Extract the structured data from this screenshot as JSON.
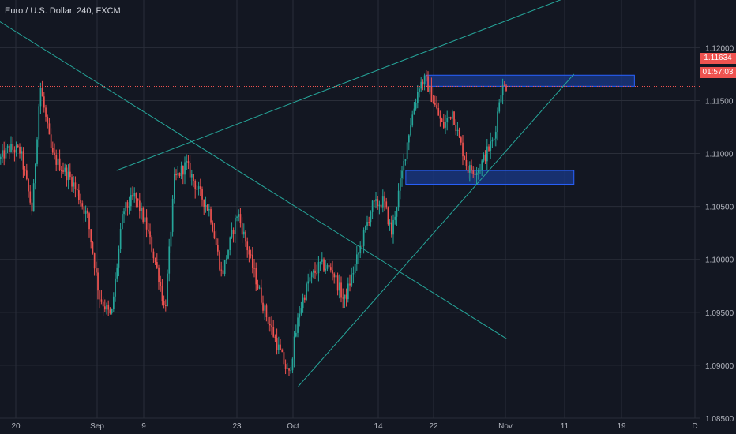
{
  "header": {
    "title": "Euro / U.S. Dollar, 240, FXCM"
  },
  "price_tag": {
    "value": "1.11634",
    "timer": "01:57:03"
  },
  "colors": {
    "background": "#131722",
    "grid": "#2a2e39",
    "up": "#26a69a",
    "down": "#ef5350",
    "trendline": "#26a69a",
    "zone_fill": "#1a3a8a",
    "zone_border": "#2962ff",
    "price_line": "#ef5350"
  },
  "chart_data": {
    "type": "candlestick",
    "title": "Euro / U.S. Dollar, 240, FXCM",
    "ylim": [
      1.085,
      1.1245
    ],
    "y_ticks": [
      "1.12000",
      "1.11500",
      "1.11000",
      "1.10500",
      "1.10000",
      "1.09500",
      "1.09000",
      "1.08500"
    ],
    "y_tick_values": [
      1.12,
      1.115,
      1.11,
      1.105,
      1.1,
      1.095,
      1.09,
      1.085
    ],
    "x_ticks": [
      "20",
      "Sep",
      "9",
      "23",
      "Oct",
      "14",
      "22",
      "Nov",
      "11",
      "19",
      "D"
    ],
    "x_tick_dates": [
      "2019-08-20",
      "2019-09-01",
      "2019-09-09",
      "2019-09-23",
      "2019-10-01",
      "2019-10-14",
      "2019-10-22",
      "2019-11-01",
      "2019-11-11",
      "2019-11-19",
      "2019-11-29"
    ],
    "last_price": 1.11634,
    "grid": true,
    "keyframes": [
      [
        0,
        1.1095
      ],
      [
        10,
        1.1105
      ],
      [
        25,
        1.1102
      ],
      [
        40,
        1.1045
      ],
      [
        50,
        1.1165
      ],
      [
        65,
        1.1098
      ],
      [
        90,
        1.1075
      ],
      [
        110,
        1.104
      ],
      [
        125,
        1.0965
      ],
      [
        140,
        1.0945
      ],
      [
        155,
        1.1045
      ],
      [
        170,
        1.106
      ],
      [
        185,
        1.103
      ],
      [
        200,
        1.0985
      ],
      [
        208,
        1.095
      ],
      [
        220,
        1.1075
      ],
      [
        235,
        1.109
      ],
      [
        250,
        1.1065
      ],
      [
        265,
        1.1045
      ],
      [
        280,
        1.0985
      ],
      [
        300,
        1.1045
      ],
      [
        320,
        1.099
      ],
      [
        335,
        1.095
      ],
      [
        350,
        1.092
      ],
      [
        365,
        1.089
      ],
      [
        378,
        1.095
      ],
      [
        390,
        1.098
      ],
      [
        405,
        1.0995
      ],
      [
        420,
        1.099
      ],
      [
        435,
        1.096
      ],
      [
        455,
        1.101
      ],
      [
        470,
        1.105
      ],
      [
        485,
        1.1055
      ],
      [
        495,
        1.1025
      ],
      [
        508,
        1.108
      ],
      [
        518,
        1.1125
      ],
      [
        530,
        1.1165
      ],
      [
        538,
        1.117
      ],
      [
        550,
        1.1145
      ],
      [
        560,
        1.1125
      ],
      [
        572,
        1.114
      ],
      [
        580,
        1.1115
      ],
      [
        592,
        1.1085
      ],
      [
        605,
        1.1085
      ],
      [
        615,
        1.11
      ],
      [
        625,
        1.1115
      ],
      [
        633,
        1.116
      ],
      [
        642,
        1.1165
      ]
    ],
    "trendlines": [
      {
        "from": [
          "2019-08-15",
          1.1235
        ],
        "to": [
          "2019-11-01",
          1.0925
        ]
      },
      {
        "from": [
          "2019-09-04",
          1.1084
        ],
        "to": [
          "2019-11-11",
          1.125
        ]
      },
      {
        "from": [
          "2019-10-01",
          1.088
        ],
        "to": [
          "2019-11-11",
          1.1175
        ]
      }
    ],
    "zones": [
      {
        "from": "2019-10-20",
        "to": "2019-11-20",
        "y_from": 1.11635,
        "y_to": 1.1174
      },
      {
        "from": "2019-10-17",
        "to": "2019-11-11",
        "y_from": 1.1071,
        "y_to": 1.1084
      }
    ]
  }
}
